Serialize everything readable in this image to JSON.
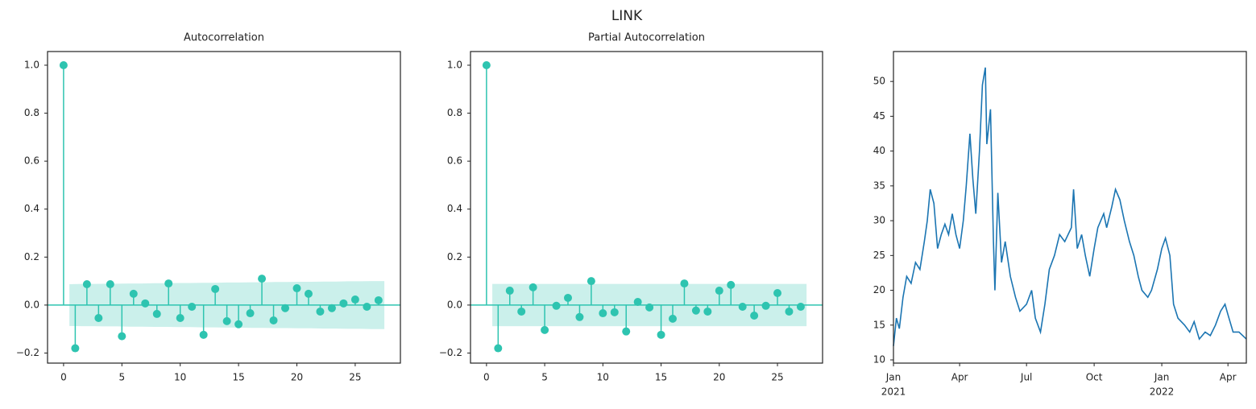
{
  "title": "LINK",
  "chart_data": [
    {
      "type": "stem",
      "title": "Autocorrelation",
      "color": "#2ec4b0",
      "x": [
        0,
        1,
        2,
        3,
        4,
        5,
        6,
        7,
        8,
        9,
        10,
        11,
        12,
        13,
        14,
        15,
        16,
        17,
        18,
        19,
        20,
        21,
        22,
        23,
        24,
        25,
        26,
        27
      ],
      "values": [
        1.0,
        -0.18,
        0.087,
        -0.054,
        0.087,
        -0.13,
        0.047,
        0.007,
        -0.037,
        0.09,
        -0.054,
        -0.007,
        -0.124,
        0.067,
        -0.067,
        -0.08,
        -0.034,
        0.11,
        -0.064,
        -0.013,
        0.07,
        0.047,
        -0.027,
        -0.013,
        0.007,
        0.023,
        -0.007,
        0.02
      ],
      "band_upper": [
        0.087,
        0.088,
        0.088,
        0.089,
        0.089,
        0.09,
        0.09,
        0.091,
        0.091,
        0.092,
        0.092,
        0.093,
        0.093,
        0.094,
        0.094,
        0.095,
        0.095,
        0.096,
        0.096,
        0.097,
        0.097,
        0.098,
        0.098,
        0.099,
        0.099,
        0.1,
        0.1
      ],
      "band_lower": [
        -0.087,
        -0.088,
        -0.088,
        -0.089,
        -0.089,
        -0.09,
        -0.09,
        -0.091,
        -0.091,
        -0.092,
        -0.092,
        -0.093,
        -0.093,
        -0.094,
        -0.094,
        -0.095,
        -0.095,
        -0.096,
        -0.096,
        -0.097,
        -0.097,
        -0.098,
        -0.098,
        -0.099,
        -0.099,
        -0.1,
        -0.1
      ],
      "xlim": [
        -1.375,
        28.875
      ],
      "xticks": [
        0,
        5,
        10,
        15,
        20,
        25
      ],
      "ylim": [
        -0.242,
        1.057
      ],
      "yticks": [
        {
          "value": -0.2,
          "label": "−0.2"
        },
        {
          "value": 0,
          "label": "0.0"
        },
        {
          "value": 0.2,
          "label": "0.2"
        },
        {
          "value": 0.4,
          "label": "0.4"
        },
        {
          "value": 0.6,
          "label": "0.6"
        },
        {
          "value": 0.8,
          "label": "0.8"
        },
        {
          "value": 1,
          "label": "1.0"
        }
      ]
    },
    {
      "type": "stem",
      "title": "Partial Autocorrelation",
      "color": "#2ec4b0",
      "x": [
        0,
        1,
        2,
        3,
        4,
        5,
        6,
        7,
        8,
        9,
        10,
        11,
        12,
        13,
        14,
        15,
        16,
        17,
        18,
        19,
        20,
        21,
        22,
        23,
        24,
        25,
        26,
        27
      ],
      "values": [
        1.0,
        -0.18,
        0.06,
        -0.027,
        0.074,
        -0.104,
        -0.003,
        0.03,
        -0.05,
        0.1,
        -0.034,
        -0.03,
        -0.11,
        0.013,
        -0.01,
        -0.124,
        -0.057,
        0.09,
        -0.023,
        -0.027,
        0.06,
        0.084,
        -0.007,
        -0.044,
        -0.003,
        0.05,
        -0.027,
        -0.007
      ],
      "band_upper": [
        0.088,
        0.088,
        0.088,
        0.088,
        0.088,
        0.088,
        0.088,
        0.088,
        0.088,
        0.088,
        0.088,
        0.088,
        0.088,
        0.088,
        0.088,
        0.088,
        0.088,
        0.088,
        0.088,
        0.088,
        0.088,
        0.088,
        0.088,
        0.088,
        0.088,
        0.088,
        0.088
      ],
      "band_lower": [
        -0.088,
        -0.088,
        -0.088,
        -0.088,
        -0.088,
        -0.088,
        -0.088,
        -0.088,
        -0.088,
        -0.088,
        -0.088,
        -0.088,
        -0.088,
        -0.088,
        -0.088,
        -0.088,
        -0.088,
        -0.088,
        -0.088,
        -0.088,
        -0.088,
        -0.088,
        -0.088,
        -0.088,
        -0.088,
        -0.088,
        -0.088
      ],
      "xlim": [
        -1.375,
        28.875
      ],
      "xticks": [
        0,
        5,
        10,
        15,
        20,
        25
      ],
      "ylim": [
        -0.242,
        1.057
      ],
      "yticks": [
        {
          "value": -0.2,
          "label": "−0.2"
        },
        {
          "value": 0,
          "label": "0.0"
        },
        {
          "value": 0.2,
          "label": "0.2"
        },
        {
          "value": 0.4,
          "label": "0.4"
        },
        {
          "value": 0.6,
          "label": "0.6"
        },
        {
          "value": 0.8,
          "label": "0.8"
        },
        {
          "value": 1,
          "label": "1.0"
        }
      ]
    },
    {
      "type": "line",
      "color": "#1b75b2",
      "x": [
        "2021-01-01",
        "2021-01-05",
        "2021-01-09",
        "2021-01-14",
        "2021-01-19",
        "2021-01-25",
        "2021-01-31",
        "2021-02-06",
        "2021-02-12",
        "2021-02-16",
        "2021-02-20",
        "2021-02-25",
        "2021-03-02",
        "2021-03-07",
        "2021-03-12",
        "2021-03-17",
        "2021-03-22",
        "2021-03-27",
        "2021-04-01",
        "2021-04-06",
        "2021-04-10",
        "2021-04-15",
        "2021-04-19",
        "2021-04-23",
        "2021-04-28",
        "2021-05-02",
        "2021-05-06",
        "2021-05-08",
        "2021-05-13",
        "2021-05-17",
        "2021-05-19",
        "2021-05-23",
        "2021-05-28",
        "2021-06-02",
        "2021-06-09",
        "2021-06-16",
        "2021-06-22",
        "2021-07-01",
        "2021-07-08",
        "2021-07-13",
        "2021-07-20",
        "2021-07-26",
        "2021-08-01",
        "2021-08-08",
        "2021-08-15",
        "2021-08-22",
        "2021-08-31",
        "2021-09-03",
        "2021-09-08",
        "2021-09-14",
        "2021-09-19",
        "2021-09-25",
        "2021-10-01",
        "2021-10-06",
        "2021-10-14",
        "2021-10-18",
        "2021-10-25",
        "2021-10-30",
        "2021-11-05",
        "2021-11-11",
        "2021-11-18",
        "2021-11-24",
        "2021-11-30",
        "2021-12-05",
        "2021-12-13",
        "2021-12-18",
        "2021-12-26",
        "2022-01-01",
        "2022-01-06",
        "2022-01-12",
        "2022-01-17",
        "2022-01-23",
        "2022-02-01",
        "2022-02-08",
        "2022-02-14",
        "2022-02-21",
        "2022-03-01",
        "2022-03-08",
        "2022-03-15",
        "2022-03-22",
        "2022-03-28",
        "2022-04-01",
        "2022-04-08",
        "2022-04-16",
        "2022-04-26"
      ],
      "values": [
        12,
        16,
        14.5,
        19,
        22,
        21,
        24,
        23,
        27,
        30,
        34.5,
        32.5,
        26,
        28,
        29.5,
        28,
        31,
        28,
        26,
        30,
        35,
        42.5,
        36,
        31,
        40,
        49.5,
        52,
        41,
        46,
        27,
        20,
        34,
        24,
        27,
        22,
        19,
        17,
        18,
        20,
        16,
        14,
        18,
        23,
        25,
        28,
        27,
        29,
        34.5,
        26,
        28,
        25,
        22,
        26,
        29,
        31,
        29,
        32,
        34.5,
        33,
        30,
        27,
        25,
        22,
        20,
        19,
        20,
        23,
        26,
        27.5,
        25,
        18,
        16,
        15,
        14,
        15.5,
        13,
        14,
        13.5,
        15,
        17,
        18,
        16.5,
        14,
        14,
        13
      ],
      "xlim": [
        "2021-01-01",
        "2022-04-26"
      ],
      "xticks": [
        {
          "value": "2021-01-01",
          "label": "Jan",
          "year": "2021"
        },
        {
          "value": "2021-04-01",
          "label": "Apr"
        },
        {
          "value": "2021-07-01",
          "label": "Jul"
        },
        {
          "value": "2021-10-01",
          "label": "Oct"
        },
        {
          "value": "2022-01-01",
          "label": "Jan",
          "year": "2022"
        },
        {
          "value": "2022-04-01",
          "label": "Apr"
        }
      ],
      "ylim": [
        9.54,
        54.3
      ],
      "yticks": [
        10,
        15,
        20,
        25,
        30,
        35,
        40,
        45,
        50
      ]
    }
  ]
}
